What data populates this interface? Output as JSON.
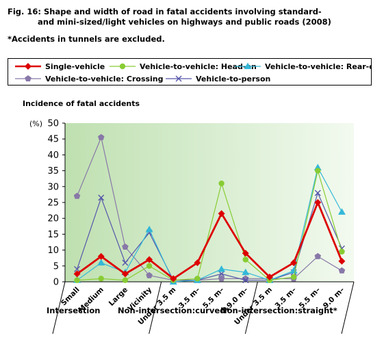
{
  "title_line1": "Fig. 16: Shape and width of road in fatal accidents involving standard-",
  "title_line2": "and mini-sized/light vehicles on highways and public roads (2008)",
  "note": "*Accidents in tunnels are excluded.",
  "chart_data": {
    "type": "line",
    "ylabel": "Incidence of fatal accidents",
    "y_unit": "(%)",
    "ylim": [
      0,
      50
    ],
    "y_ticks": [
      0,
      5,
      10,
      15,
      20,
      25,
      30,
      35,
      40,
      45,
      50
    ],
    "categories": [
      "Small",
      "Medium",
      "Large",
      "Vicinity",
      "Under 3.5 m",
      "3.5 m–",
      "5.5 m–",
      "9.0 m–",
      "Under 3.5 m",
      "3.5 m–",
      "5.5 m–",
      "9.0 m–"
    ],
    "groups": [
      {
        "label": "Intersection",
        "start": 0,
        "end": 3
      },
      {
        "label": "Non-intersection:curved*",
        "start": 4,
        "end": 7
      },
      {
        "label": "Non-intersection:straight*",
        "start": 8,
        "end": 11
      }
    ],
    "series": [
      {
        "name": "Single-vehicle",
        "color": "#dd0000",
        "marker": "diamond",
        "values": [
          2.5,
          8,
          2.5,
          7,
          1,
          6,
          21.5,
          9,
          1.5,
          6,
          25,
          6.5
        ]
      },
      {
        "name": "Vehicle-to-vehicle: Head-on",
        "color": "#88cc33",
        "marker": "circle",
        "values": [
          0.5,
          1,
          0.5,
          5,
          0.5,
          1,
          31,
          7,
          0.5,
          1.5,
          35,
          9.5
        ]
      },
      {
        "name": "Vehicle-to-vehicle: Rear-end",
        "color": "#33b8d8",
        "marker": "triangle",
        "values": [
          0.5,
          6,
          3,
          16.5,
          0,
          0.5,
          4,
          3,
          0.5,
          3.5,
          36,
          22
        ]
      },
      {
        "name": "Vehicle-to-vehicle: Crossing",
        "color": "#8878a8",
        "marker": "pentagon",
        "values": [
          27,
          45.5,
          11,
          2,
          0.5,
          0.5,
          1,
          1,
          1,
          1,
          8,
          3.5
        ]
      },
      {
        "name": "Vehicle-to-person",
        "color": "#5555aa",
        "marker": "x",
        "values": [
          4,
          26.5,
          6,
          15.5,
          0.5,
          0.5,
          2.5,
          0.5,
          0.5,
          3,
          28,
          10.5
        ]
      }
    ],
    "legend_position": "top"
  }
}
